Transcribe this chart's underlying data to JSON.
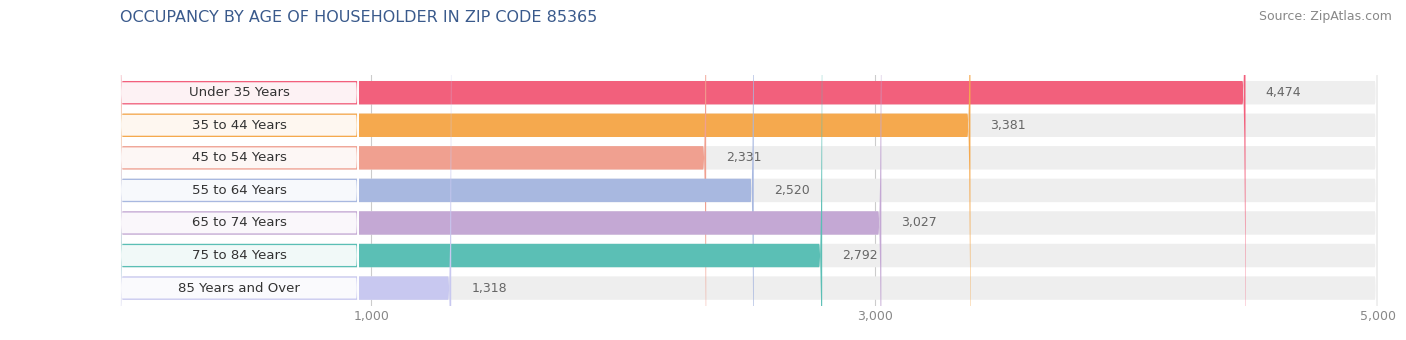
{
  "title": "OCCUPANCY BY AGE OF HOUSEHOLDER IN ZIP CODE 85365",
  "source": "Source: ZipAtlas.com",
  "categories": [
    "Under 35 Years",
    "35 to 44 Years",
    "45 to 54 Years",
    "55 to 64 Years",
    "65 to 74 Years",
    "75 to 84 Years",
    "85 Years and Over"
  ],
  "values": [
    4474,
    3381,
    2331,
    2520,
    3027,
    2792,
    1318
  ],
  "bar_colors": [
    "#F2607C",
    "#F5A94E",
    "#F0A090",
    "#A8B8E0",
    "#C4A8D4",
    "#5BBFB5",
    "#C8C8F0"
  ],
  "bar_bg_color": "#EEEEEE",
  "label_bg_color": "#FFFFFF",
  "xlim": [
    0,
    5000
  ],
  "xticks": [
    1000,
    3000,
    5000
  ],
  "title_fontsize": 11.5,
  "source_fontsize": 9,
  "label_fontsize": 9.5,
  "value_fontsize": 9,
  "tick_fontsize": 9,
  "bar_height": 0.72,
  "figure_bg": "#FFFFFF",
  "axes_bg": "#FFFFFF",
  "title_color": "#3A5A8C",
  "label_text_color": "#333333",
  "value_text_color": "#666666",
  "tick_color": "#888888",
  "grid_color": "#CCCCCC"
}
